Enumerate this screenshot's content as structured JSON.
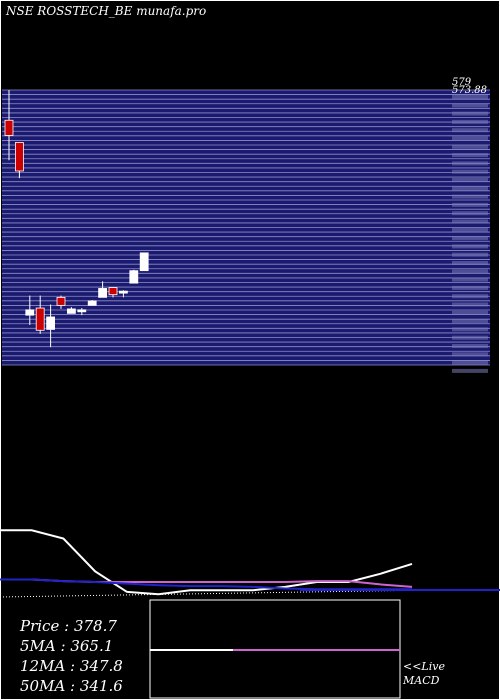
{
  "header": {
    "title": "NSE ROSSTECH_BE munafa.pro"
  },
  "chart_data": [
    {
      "type": "candlestick",
      "title": "NSE ROSSTECH_BE munafa.pro",
      "ylim": [
        270,
        579
      ],
      "right_axis_top_labels": [
        "579",
        "573.88"
      ],
      "grid": "horizontal",
      "colors": {
        "background": "#1a1a6e",
        "grid": "#8e8ecc",
        "up": "#ffffff",
        "down": "#cc0000"
      },
      "candles": [
        {
          "o": 545,
          "h": 579,
          "l": 500,
          "c": 528,
          "dir": "down"
        },
        {
          "o": 520,
          "h": 520,
          "l": 480,
          "c": 488,
          "dir": "down"
        },
        {
          "o": 326,
          "h": 348,
          "l": 315,
          "c": 332,
          "dir": "up"
        },
        {
          "o": 334,
          "h": 348,
          "l": 305,
          "c": 309,
          "dir": "down"
        },
        {
          "o": 310,
          "h": 338,
          "l": 290,
          "c": 324,
          "dir": "up"
        },
        {
          "o": 337,
          "h": 348,
          "l": 333,
          "c": 346,
          "dir": "down"
        },
        {
          "o": 328,
          "h": 335,
          "l": 328,
          "c": 333,
          "dir": "up"
        },
        {
          "o": 330,
          "h": 334,
          "l": 326,
          "c": 332,
          "dir": "up"
        },
        {
          "o": 337,
          "h": 343,
          "l": 337,
          "c": 342,
          "dir": "up"
        },
        {
          "o": 346,
          "h": 364,
          "l": 346,
          "c": 356,
          "dir": "up"
        },
        {
          "o": 349,
          "h": 357,
          "l": 346,
          "c": 357,
          "dir": "down"
        },
        {
          "o": 352,
          "h": 354,
          "l": 346,
          "c": 353,
          "dir": "up"
        },
        {
          "o": 362,
          "h": 377,
          "l": 362,
          "c": 376,
          "dir": "up"
        },
        {
          "o": 376,
          "h": 396,
          "l": 376,
          "c": 396,
          "dir": "up"
        }
      ]
    },
    {
      "type": "line",
      "series": [
        {
          "values": [
            515,
            515,
            505,
            465,
            440,
            437,
            442,
            442,
            442,
            446,
            452,
            452,
            462,
            474
          ]
        },
        {
          "values": [
            455,
            455,
            453,
            452,
            452,
            452,
            452,
            452,
            452,
            452,
            453,
            453,
            449,
            446
          ]
        },
        {
          "values": [
            455,
            455,
            453,
            452,
            450,
            448,
            447,
            447,
            446,
            444,
            443,
            443,
            443,
            443
          ]
        }
      ],
      "ylim": [
        430,
        530
      ]
    },
    {
      "type": "line",
      "series": [
        {
          "values": [
            50,
            50,
            50,
            50,
            50,
            50
          ]
        }
      ],
      "label": "MACD"
    }
  ],
  "stats": [
    {
      "label": "Price",
      "sep": " : ",
      "value": "378.7"
    },
    {
      "label": "5MA",
      "sep": " : ",
      "value": "365.1"
    },
    {
      "label": "12MA",
      "sep": " : ",
      "value": "347.8"
    },
    {
      "label": "50MA",
      "sep": " : ",
      "value": "341.6"
    }
  ],
  "macd_label": {
    "line1": "<<Live",
    "line2": "MACD"
  }
}
